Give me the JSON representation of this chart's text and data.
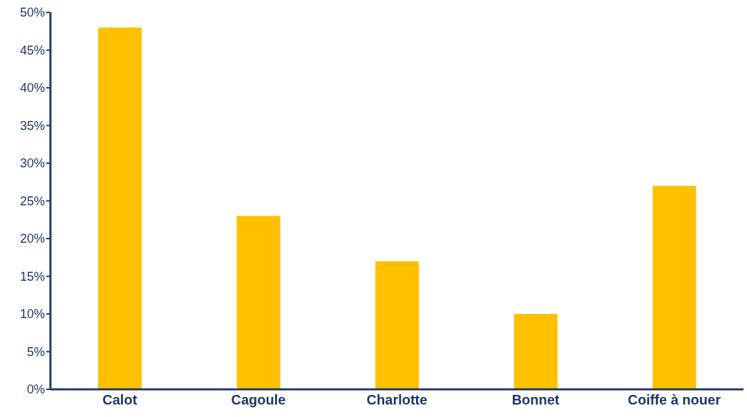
{
  "chart_data": {
    "type": "bar",
    "categories": [
      "Calot",
      "Cagoule",
      "Charlotte",
      "Bonnet",
      "Coiffe à nouer"
    ],
    "values": [
      48,
      23,
      17,
      10,
      27
    ],
    "color": "#ffc000",
    "ylim": [
      0,
      50
    ],
    "yticks": [
      {
        "value": 0,
        "label": "0%"
      },
      {
        "value": 5,
        "label": "5%"
      },
      {
        "value": 10,
        "label": "10%"
      },
      {
        "value": 15,
        "label": "15%"
      },
      {
        "value": 20,
        "label": "20%"
      },
      {
        "value": 25,
        "label": "25%"
      },
      {
        "value": 30,
        "label": "30%"
      },
      {
        "value": 35,
        "label": "35%"
      },
      {
        "value": 40,
        "label": "40%"
      },
      {
        "value": 45,
        "label": "45%"
      },
      {
        "value": 50,
        "label": "50%"
      }
    ],
    "grid": false,
    "legend": false
  }
}
